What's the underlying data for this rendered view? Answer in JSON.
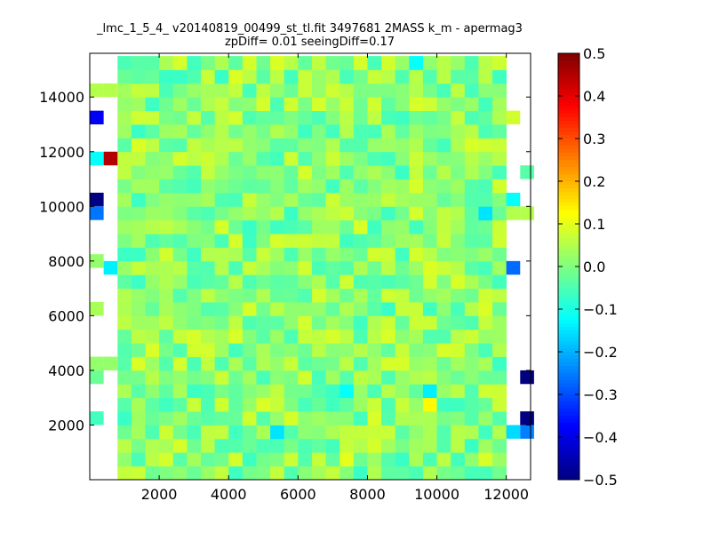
{
  "chart_data": {
    "type": "heatmap",
    "title": "_lmc_1_5_4_ v20140819_00499_st_tl.fit 3497681 2MASS k_m - apermag3",
    "subtitle": "zpDiff= 0.01 seeingDiff=0.17",
    "xlabel": "",
    "ylabel": "",
    "xlim": [
      0,
      12700
    ],
    "ylim": [
      0,
      15600
    ],
    "xticks": [
      2000,
      4000,
      6000,
      8000,
      10000,
      12000
    ],
    "yticks": [
      2000,
      4000,
      6000,
      8000,
      10000,
      12000,
      14000
    ],
    "xticklabels": [
      "2000",
      "4000",
      "6000",
      "8000",
      "10000",
      "12000"
    ],
    "yticklabels": [
      "2000",
      "4000",
      "6000",
      "8000",
      "10000",
      "12000",
      "14000"
    ],
    "colormap": "jet",
    "clim": [
      -0.5,
      0.5
    ],
    "colorbar_ticks": [
      0.5,
      0.4,
      0.3,
      0.2,
      0.1,
      0.0,
      -0.1,
      -0.2,
      -0.3,
      -0.4,
      -0.5
    ],
    "colorbar_ticklabels": [
      "0.5",
      "0.4",
      "0.3",
      "0.2",
      "0.1",
      "0.0",
      "−0.1",
      "−0.2",
      "−0.3",
      "−0.4",
      "−0.5"
    ],
    "grid": false,
    "cell_size": [
      400,
      500
    ],
    "outliers": [
      {
        "x": 200,
        "y": 13250,
        "value": -0.38
      },
      {
        "x": 600,
        "y": 11750,
        "value": 0.45
      },
      {
        "x": 200,
        "y": 11750,
        "value": -0.12
      },
      {
        "x": 200,
        "y": 10250,
        "value": -0.5
      },
      {
        "x": 200,
        "y": 9750,
        "value": -0.26
      },
      {
        "x": 200,
        "y": 2250,
        "value": -0.06
      },
      {
        "x": 600,
        "y": 7750,
        "value": -0.14
      },
      {
        "x": 12200,
        "y": 7750,
        "value": -0.27
      },
      {
        "x": 12200,
        "y": 1750,
        "value": -0.16
      },
      {
        "x": 12600,
        "y": 3750,
        "value": -0.5
      },
      {
        "x": 12600,
        "y": 2250,
        "value": -0.5
      },
      {
        "x": 12600,
        "y": 1750,
        "value": -0.25
      },
      {
        "x": 12200,
        "y": 10250,
        "value": -0.12
      },
      {
        "x": 7400,
        "y": 750,
        "value": 0.1
      },
      {
        "x": 9800,
        "y": 2750,
        "value": 0.13
      },
      {
        "x": 9800,
        "y": 3250,
        "value": -0.14
      },
      {
        "x": 5400,
        "y": 1750,
        "value": -0.15
      },
      {
        "x": 7400,
        "y": 3250,
        "value": -0.12
      },
      {
        "x": 11400,
        "y": 9750,
        "value": -0.15
      },
      {
        "x": 4800,
        "y": 6250,
        "value": -0.13
      },
      {
        "x": 9400,
        "y": 15250,
        "value": -0.12
      },
      {
        "x": 200,
        "y": 14250,
        "value": 0.05
      },
      {
        "x": 600,
        "y": 14250,
        "value": 0.05
      },
      {
        "x": 200,
        "y": 4250,
        "value": 0.02
      },
      {
        "x": 600,
        "y": 4250,
        "value": 0.02
      },
      {
        "x": 200,
        "y": 3750,
        "value": -0.02
      },
      {
        "x": 200,
        "y": 6250,
        "value": 0.04
      },
      {
        "x": 200,
        "y": 8000,
        "value": 0.02
      },
      {
        "x": 12200,
        "y": 13250,
        "value": 0.08
      },
      {
        "x": 12600,
        "y": 11250,
        "value": -0.04
      },
      {
        "x": 12600,
        "y": 9750,
        "value": 0.05
      },
      {
        "x": 12200,
        "y": 9750,
        "value": 0.05
      }
    ]
  }
}
